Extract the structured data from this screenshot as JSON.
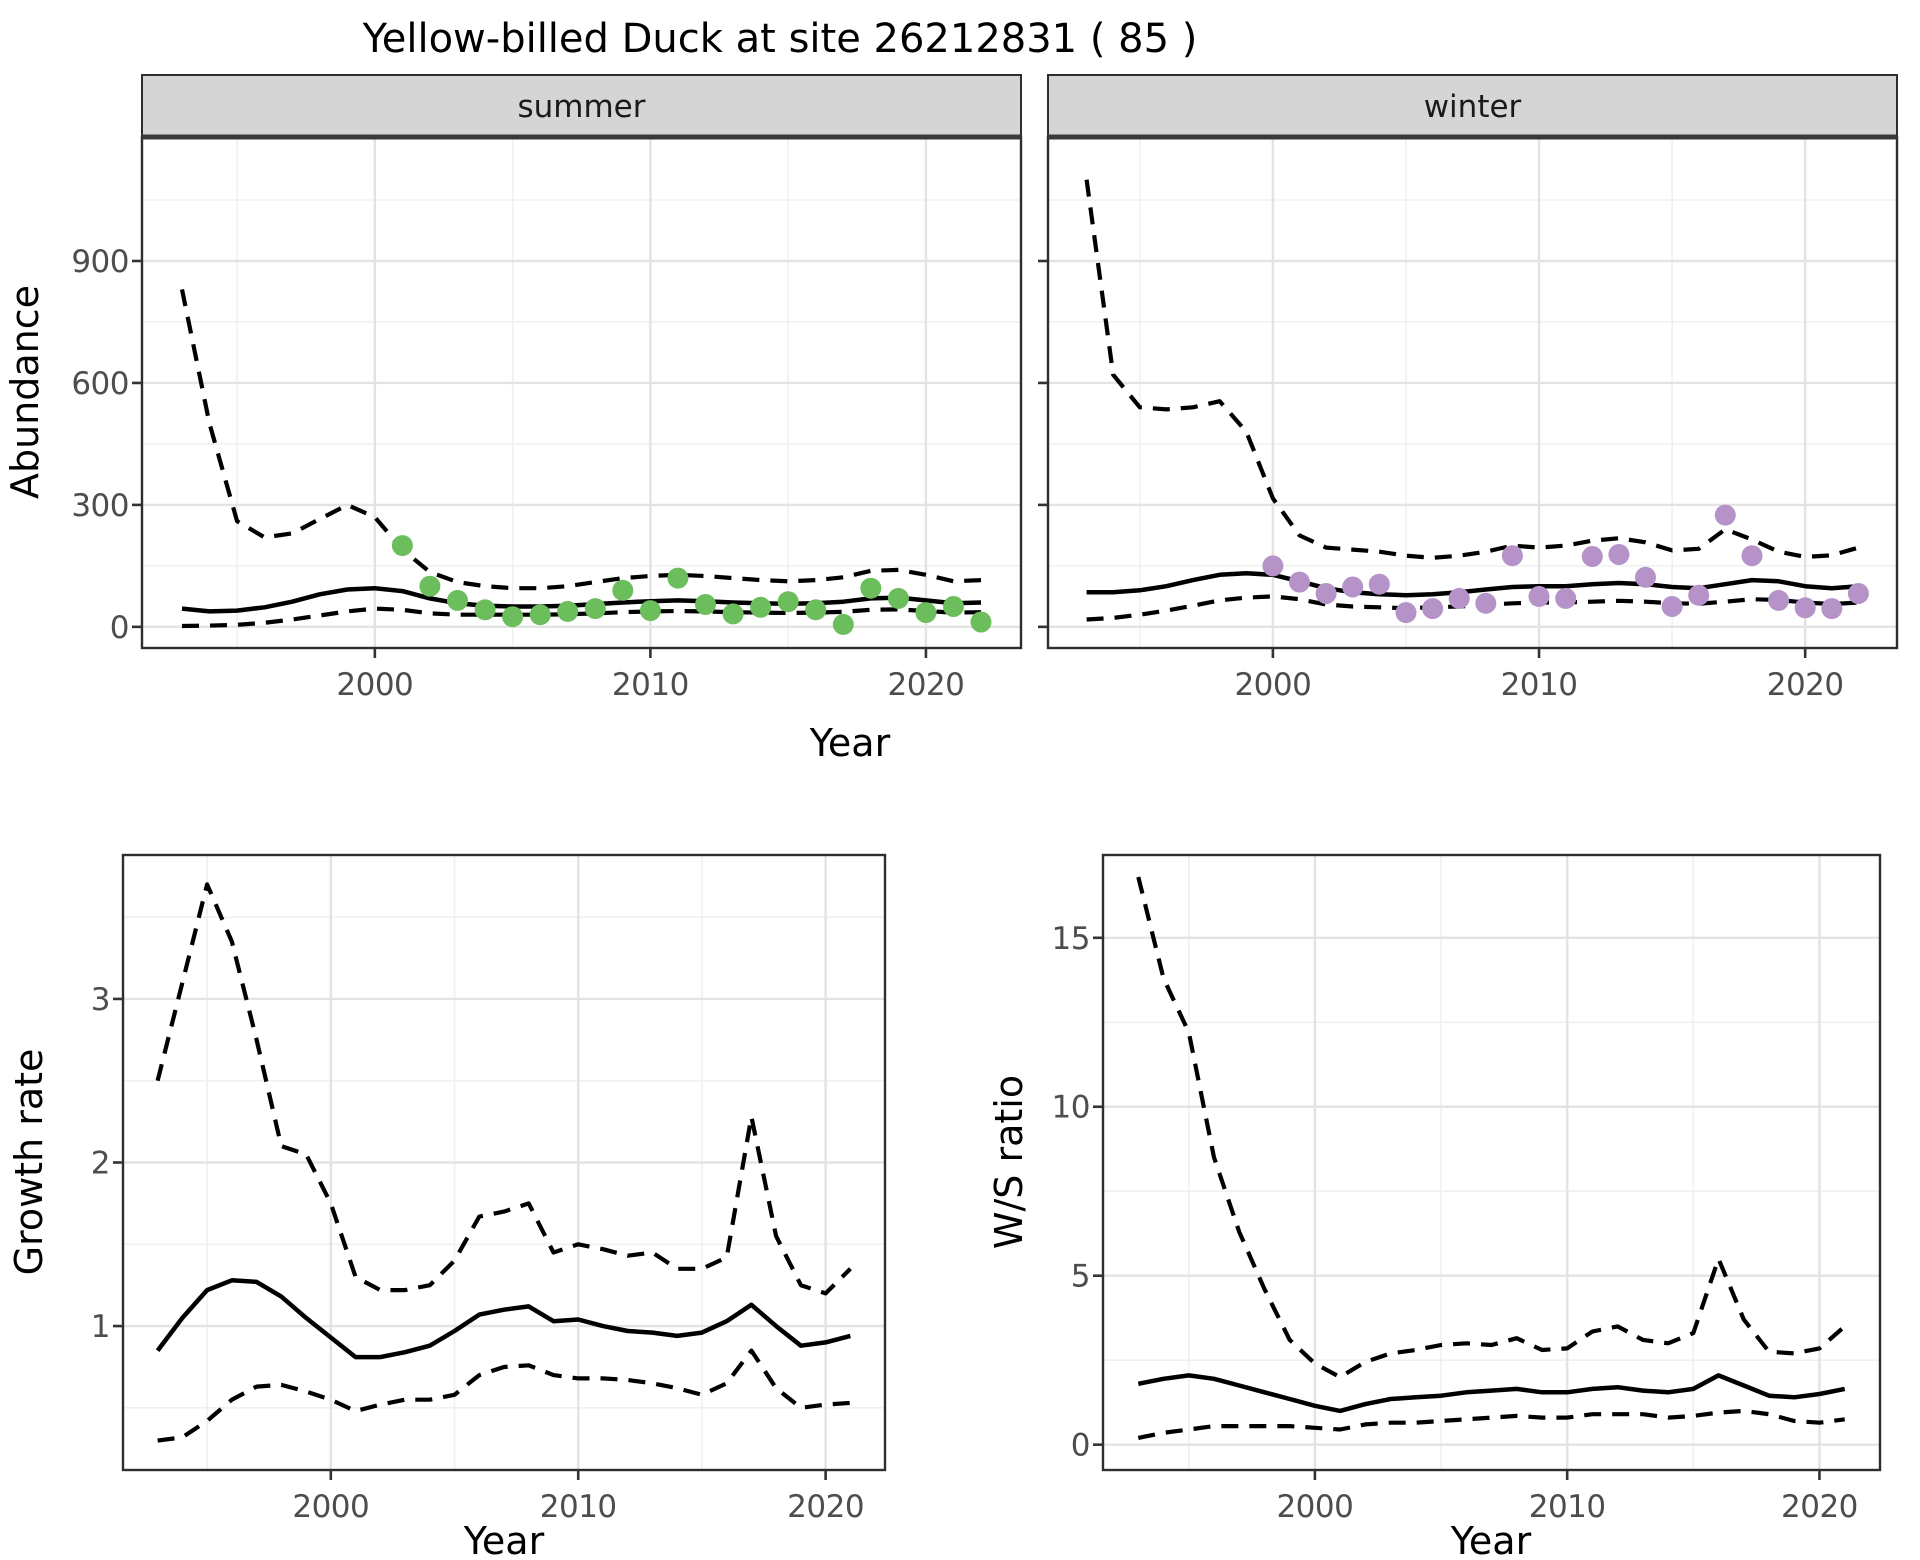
{
  "title": "Yellow-billed Duck at site 26212831 ( 85 )",
  "labels": {
    "y_abundance": "Abundance",
    "y_growth": "Growth rate",
    "y_ws": "W/S ratio",
    "x_year": "Year",
    "facet_summer": "summer",
    "facet_winter": "winter"
  },
  "colors": {
    "summer_point": "#6CBE5C",
    "winter_point": "#B592C7",
    "line": "#000000",
    "strip_fill": "#D5D5D5",
    "strip_border": "#3A3A3A",
    "panel_border": "#2E2E2E",
    "grid_major": "#E3E3E3",
    "grid_minor": "#F0F0F0",
    "tick_mark": "#333333",
    "tick_label": "#4D4D4D",
    "panel_bg": "#FFFFFF"
  },
  "chart_data": [
    {
      "id": "abundance-summer",
      "type": "line",
      "facet": "summer",
      "ylabel": "Abundance",
      "xlabel": "Year",
      "xlim": [
        1991.55,
        2023.45
      ],
      "ylim": [
        -52,
        1205
      ],
      "x_ticks": [
        2000,
        2010,
        2020
      ],
      "x_minor": [
        1995,
        2005,
        2015
      ],
      "y_ticks": [
        0,
        300,
        600,
        900
      ],
      "y_minor": [
        150,
        450,
        750,
        1050
      ],
      "years": [
        1993,
        1994,
        1995,
        1996,
        1997,
        1998,
        1999,
        2000,
        2001,
        2002,
        2003,
        2004,
        2005,
        2006,
        2007,
        2008,
        2009,
        2010,
        2011,
        2012,
        2013,
        2014,
        2015,
        2016,
        2017,
        2018,
        2019,
        2020,
        2021,
        2022
      ],
      "series": [
        {
          "name": "mean",
          "style": "solid",
          "values": [
            45,
            38,
            40,
            48,
            62,
            80,
            92,
            95,
            88,
            70,
            58,
            52,
            50,
            50,
            52,
            56,
            60,
            63,
            65,
            63,
            60,
            58,
            57,
            58,
            62,
            70,
            72,
            65,
            58,
            60
          ]
        },
        {
          "name": "upper_ci",
          "style": "dashed",
          "values": [
            830,
            500,
            260,
            220,
            230,
            265,
            300,
            270,
            190,
            135,
            110,
            100,
            95,
            95,
            100,
            110,
            120,
            125,
            128,
            125,
            120,
            115,
            112,
            115,
            122,
            138,
            140,
            128,
            112,
            115
          ]
        },
        {
          "name": "lower_ci",
          "style": "dashed",
          "values": [
            2,
            3,
            5,
            10,
            18,
            28,
            38,
            45,
            42,
            33,
            30,
            30,
            30,
            30,
            31,
            33,
            36,
            38,
            39,
            38,
            36,
            35,
            34,
            35,
            37,
            42,
            43,
            39,
            35,
            36
          ]
        }
      ],
      "points": {
        "color_key": "summer_point",
        "years": [
          2001,
          2002,
          2003,
          2004,
          2005,
          2006,
          2007,
          2008,
          2009,
          2010,
          2011,
          2012,
          2013,
          2014,
          2015,
          2016,
          2017,
          2018,
          2019,
          2020,
          2021,
          2022
        ],
        "values": [
          200,
          100,
          65,
          42,
          25,
          30,
          38,
          45,
          90,
          40,
          120,
          55,
          32,
          48,
          62,
          42,
          6,
          95,
          70,
          35,
          50,
          12
        ]
      }
    },
    {
      "id": "abundance-winter",
      "type": "line",
      "facet": "winter",
      "ylabel": "Abundance",
      "xlabel": "Year",
      "xlim": [
        1991.55,
        2023.45
      ],
      "ylim": [
        -52,
        1205
      ],
      "x_ticks": [
        2000,
        2010,
        2020
      ],
      "x_minor": [
        1995,
        2005,
        2015
      ],
      "y_ticks": [
        0,
        300,
        600,
        900
      ],
      "y_minor": [
        150,
        450,
        750,
        1050
      ],
      "years": [
        1993,
        1994,
        1995,
        1996,
        1997,
        1998,
        1999,
        2000,
        2001,
        2002,
        2003,
        2004,
        2005,
        2006,
        2007,
        2008,
        2009,
        2010,
        2011,
        2012,
        2013,
        2014,
        2015,
        2016,
        2017,
        2018,
        2019,
        2020,
        2021,
        2022
      ],
      "series": [
        {
          "name": "mean",
          "style": "solid",
          "values": [
            85,
            85,
            90,
            100,
            115,
            128,
            132,
            128,
            112,
            95,
            85,
            80,
            78,
            80,
            85,
            92,
            98,
            100,
            100,
            105,
            108,
            105,
            98,
            95,
            105,
            115,
            112,
            100,
            95,
            100
          ]
        },
        {
          "name": "upper_ci",
          "style": "dashed",
          "values": [
            1100,
            620,
            540,
            535,
            540,
            555,
            480,
            316,
            225,
            195,
            190,
            185,
            175,
            170,
            175,
            185,
            200,
            195,
            200,
            212,
            218,
            208,
            188,
            192,
            240,
            215,
            185,
            172,
            176,
            195
          ]
        },
        {
          "name": "lower_ci",
          "style": "dashed",
          "values": [
            18,
            22,
            30,
            40,
            52,
            65,
            72,
            75,
            68,
            55,
            50,
            48,
            46,
            48,
            50,
            54,
            58,
            60,
            60,
            62,
            64,
            62,
            58,
            57,
            62,
            68,
            66,
            60,
            56,
            60
          ]
        }
      ],
      "points": {
        "color_key": "winter_point",
        "years": [
          2000,
          2001,
          2002,
          2003,
          2004,
          2005,
          2006,
          2007,
          2008,
          2009,
          2010,
          2011,
          2012,
          2013,
          2014,
          2015,
          2016,
          2017,
          2018,
          2019,
          2020,
          2021,
          2022
        ],
        "values": [
          150,
          110,
          82,
          98,
          105,
          35,
          45,
          70,
          58,
          175,
          75,
          70,
          173,
          178,
          122,
          50,
          78,
          275,
          175,
          65,
          47,
          45,
          82
        ]
      }
    },
    {
      "id": "growth-rate",
      "type": "line",
      "facet": null,
      "ylabel": "Growth rate",
      "xlabel": "Year",
      "xlim": [
        1991.6,
        2022.4
      ],
      "ylim": [
        0.12,
        3.88
      ],
      "x_ticks": [
        2000,
        2010,
        2020
      ],
      "x_minor": [
        1995,
        2005,
        2015
      ],
      "y_ticks": [
        1,
        2,
        3
      ],
      "y_minor": [
        0.5,
        1.5,
        2.5,
        3.5
      ],
      "years": [
        1993,
        1994,
        1995,
        1996,
        1997,
        1998,
        1999,
        2000,
        2001,
        2002,
        2003,
        2004,
        2005,
        2006,
        2007,
        2008,
        2009,
        2010,
        2011,
        2012,
        2013,
        2014,
        2015,
        2016,
        2017,
        2018,
        2019,
        2020,
        2021
      ],
      "series": [
        {
          "name": "mean",
          "style": "solid",
          "values": [
            0.85,
            1.05,
            1.22,
            1.28,
            1.27,
            1.18,
            1.05,
            0.93,
            0.81,
            0.81,
            0.84,
            0.88,
            0.97,
            1.07,
            1.1,
            1.12,
            1.03,
            1.04,
            1.0,
            0.97,
            0.96,
            0.94,
            0.96,
            1.03,
            1.13,
            1.0,
            0.88,
            0.9,
            0.94
          ]
        },
        {
          "name": "upper_ci",
          "style": "dashed",
          "values": [
            2.5,
            3.1,
            3.7,
            3.35,
            2.75,
            2.1,
            2.05,
            1.75,
            1.3,
            1.22,
            1.22,
            1.25,
            1.4,
            1.67,
            1.7,
            1.75,
            1.45,
            1.5,
            1.47,
            1.43,
            1.45,
            1.35,
            1.35,
            1.42,
            2.28,
            1.55,
            1.25,
            1.2,
            1.35
          ]
        },
        {
          "name": "lower_ci",
          "style": "dashed",
          "values": [
            0.3,
            0.32,
            0.42,
            0.55,
            0.63,
            0.64,
            0.6,
            0.55,
            0.48,
            0.52,
            0.55,
            0.55,
            0.58,
            0.7,
            0.75,
            0.76,
            0.7,
            0.68,
            0.68,
            0.67,
            0.65,
            0.62,
            0.58,
            0.65,
            0.85,
            0.62,
            0.5,
            0.52,
            0.53
          ]
        }
      ],
      "points": null
    },
    {
      "id": "ws-ratio",
      "type": "line",
      "facet": null,
      "ylabel": "W/S ratio",
      "xlabel": "Year",
      "xlim": [
        1991.6,
        2022.4
      ],
      "ylim": [
        -0.75,
        17.45
      ],
      "x_ticks": [
        2000,
        2010,
        2020
      ],
      "x_minor": [
        1995,
        2005,
        2015
      ],
      "y_ticks": [
        0,
        5,
        10,
        15
      ],
      "y_minor": [
        2.5,
        7.5,
        12.5
      ],
      "years": [
        1993,
        1994,
        1995,
        1996,
        1997,
        1998,
        1999,
        2000,
        2001,
        2002,
        2003,
        2004,
        2005,
        2006,
        2007,
        2008,
        2009,
        2010,
        2011,
        2012,
        2013,
        2014,
        2015,
        2016,
        2017,
        2018,
        2019,
        2020,
        2021
      ],
      "series": [
        {
          "name": "mean",
          "style": "solid",
          "values": [
            1.8,
            1.95,
            2.05,
            1.95,
            1.75,
            1.55,
            1.35,
            1.15,
            1.0,
            1.2,
            1.35,
            1.4,
            1.45,
            1.55,
            1.6,
            1.65,
            1.55,
            1.55,
            1.65,
            1.7,
            1.6,
            1.55,
            1.65,
            2.05,
            1.75,
            1.45,
            1.4,
            1.5,
            1.65
          ]
        },
        {
          "name": "upper_ci",
          "style": "dashed",
          "values": [
            16.8,
            13.8,
            12.2,
            8.5,
            6.3,
            4.6,
            3.1,
            2.4,
            2.0,
            2.45,
            2.7,
            2.8,
            2.95,
            3.0,
            2.95,
            3.15,
            2.8,
            2.85,
            3.35,
            3.5,
            3.1,
            3.0,
            3.3,
            5.5,
            3.7,
            2.75,
            2.7,
            2.85,
            3.5
          ]
        },
        {
          "name": "lower_ci",
          "style": "dashed",
          "values": [
            0.2,
            0.35,
            0.45,
            0.55,
            0.55,
            0.55,
            0.55,
            0.5,
            0.45,
            0.6,
            0.65,
            0.65,
            0.7,
            0.75,
            0.8,
            0.85,
            0.8,
            0.8,
            0.9,
            0.9,
            0.9,
            0.8,
            0.85,
            0.95,
            1.0,
            0.9,
            0.7,
            0.65,
            0.75
          ]
        }
      ],
      "points": null
    }
  ]
}
